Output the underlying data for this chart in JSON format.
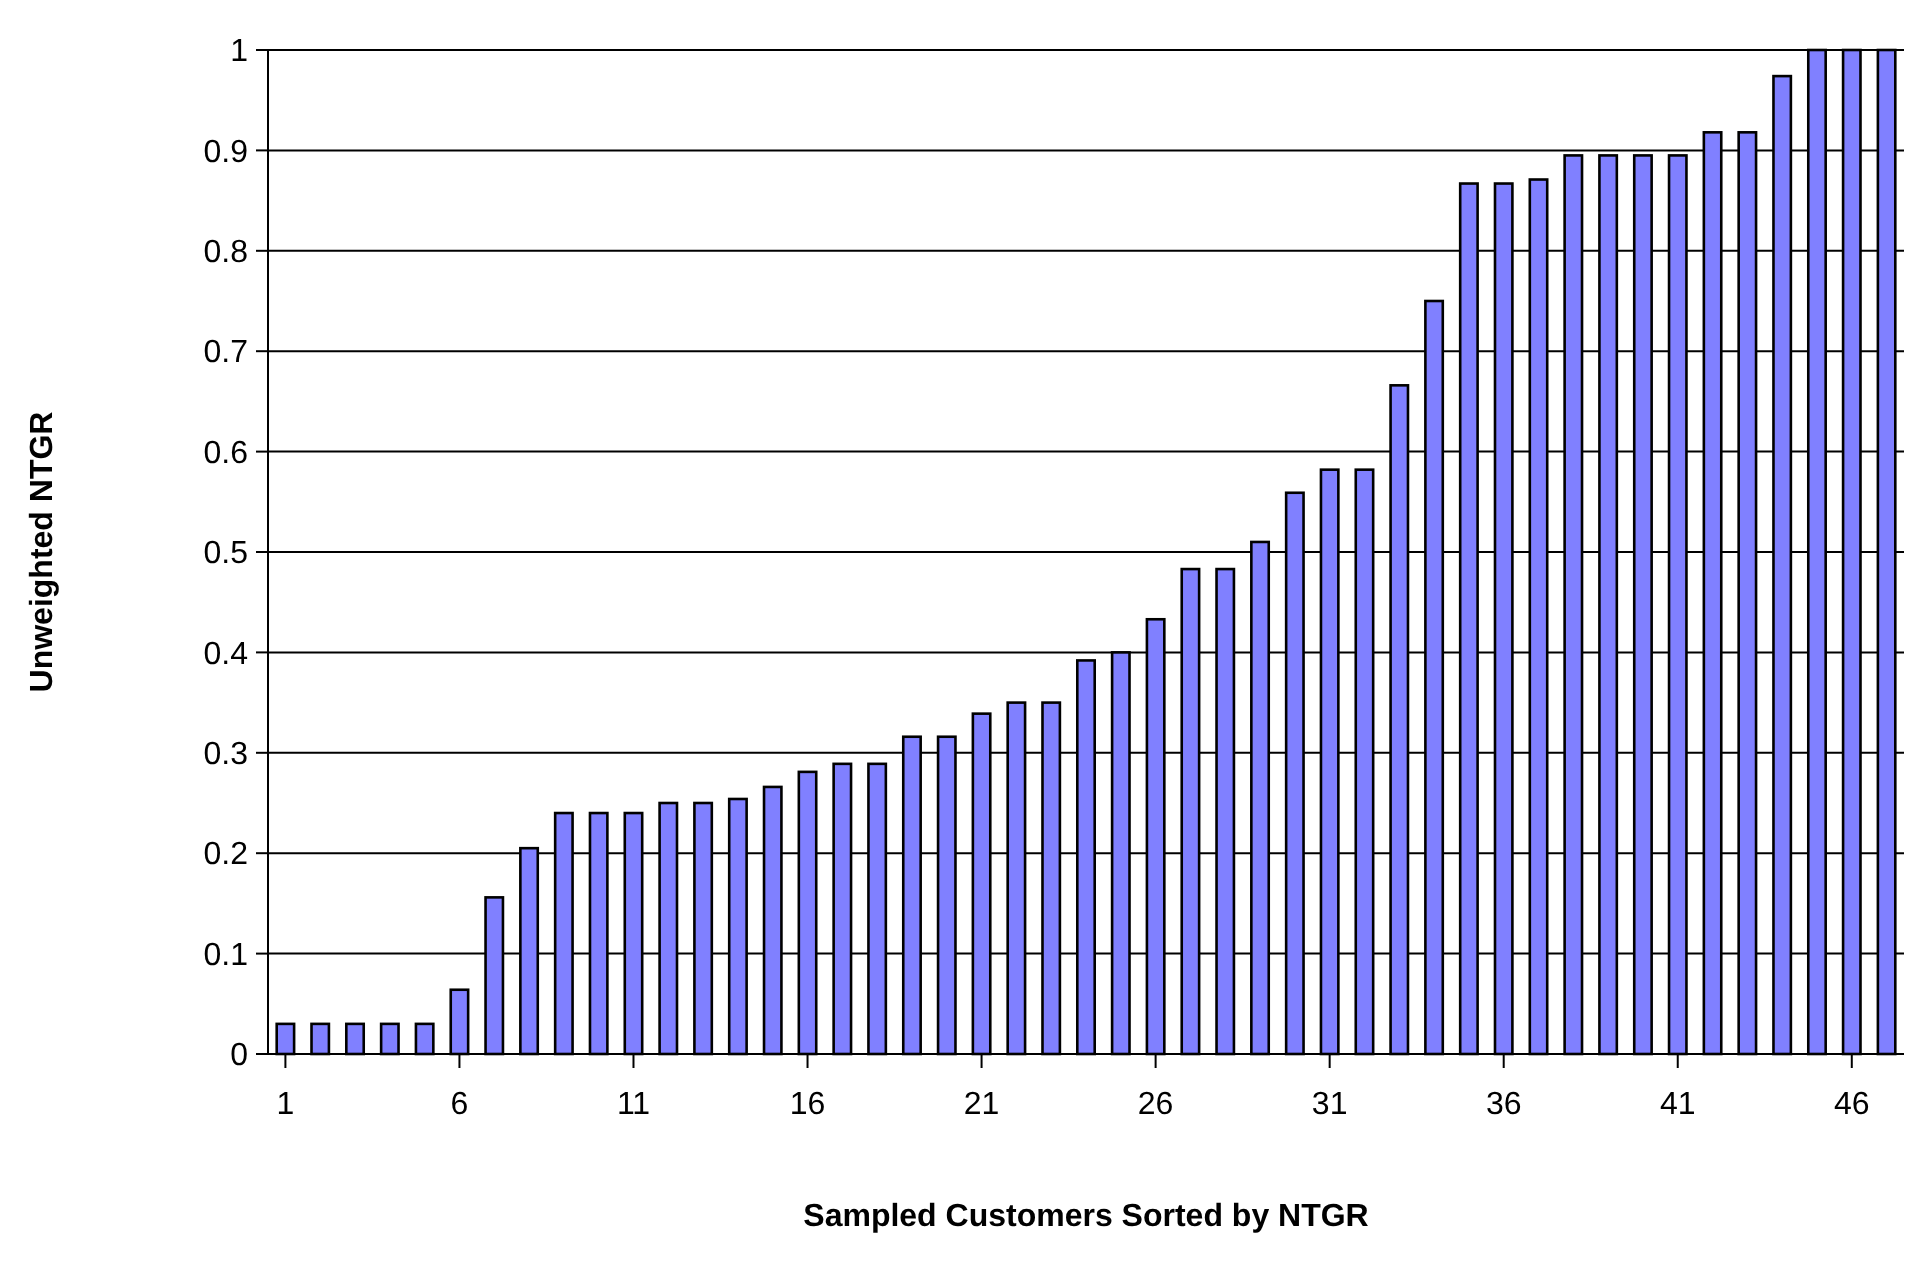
{
  "chart_data": {
    "type": "bar",
    "xlabel": "Sampled Customers Sorted by NTGR",
    "ylabel": "Unweighted NTGR",
    "x": [
      1,
      2,
      3,
      4,
      5,
      6,
      7,
      8,
      9,
      10,
      11,
      12,
      13,
      14,
      15,
      16,
      17,
      18,
      19,
      20,
      21,
      22,
      23,
      24,
      25,
      26,
      27,
      28,
      29,
      30,
      31,
      32,
      33,
      34,
      35,
      36,
      37,
      38,
      39,
      40,
      41,
      42,
      43,
      44,
      45,
      46,
      47
    ],
    "values": [
      0.03,
      0.03,
      0.03,
      0.03,
      0.03,
      0.064,
      0.156,
      0.205,
      0.24,
      0.24,
      0.24,
      0.25,
      0.25,
      0.254,
      0.266,
      0.281,
      0.289,
      0.289,
      0.316,
      0.316,
      0.339,
      0.35,
      0.35,
      0.392,
      0.4,
      0.433,
      0.483,
      0.483,
      0.51,
      0.559,
      0.582,
      0.582,
      0.666,
      0.75,
      0.867,
      0.867,
      0.871,
      0.895,
      0.895,
      0.895,
      0.895,
      0.918,
      0.918,
      0.974,
      1,
      1,
      1
    ],
    "color": "#8080ff",
    "xlim": [
      0.5,
      47.5
    ],
    "xticks": [
      1,
      6,
      11,
      16,
      21,
      26,
      31,
      36,
      41,
      46
    ],
    "ylim": [
      0,
      1
    ],
    "yticks": [
      0,
      0.1,
      0.2,
      0.3,
      0.4,
      0.5,
      0.6,
      0.7,
      0.8,
      0.9,
      1
    ],
    "grid": "y"
  }
}
